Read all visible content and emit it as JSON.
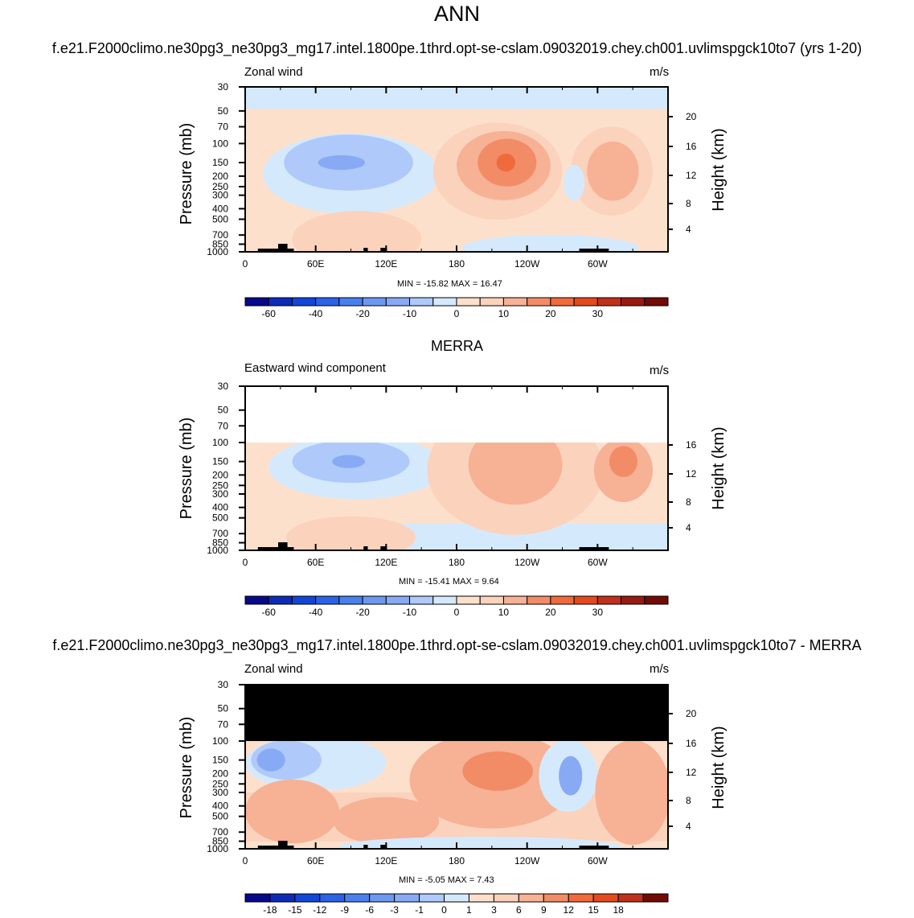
{
  "title": "ANN",
  "chart_data": [
    {
      "type": "heatmap",
      "case_title": "f.e21.F2000climo.ne30pg3_ne30pg3_mg17.intel.1800pe.1thrd.opt-se-cslam.09032019.chey.ch001.uvlimspgck10to7 (yrs 1-20)",
      "panel_label": "Zonal wind",
      "units": "m/s",
      "min_max": "MIN = -15.82  MAX =  16.47",
      "ylabel": "Pressure (mb)",
      "ylabel_right": "Height (km)",
      "x_ticks": [
        "0",
        "60E",
        "120E",
        "180",
        "120W",
        "60W"
      ],
      "y_ticks": [
        "30",
        "50",
        "70",
        "100",
        "150",
        "200",
        "250",
        "300",
        "400",
        "500",
        "700",
        "850",
        "1000"
      ],
      "y_ticks_right": [
        "20",
        "16",
        "12",
        "8",
        "4"
      ],
      "colorbar_labels": [
        "-60",
        "-40",
        "-20",
        "-10",
        "0",
        "10",
        "20",
        "30"
      ],
      "field": [
        {
          "shape": "rect",
          "color": "#d5e9fc",
          "x0": 0,
          "x1": 360,
          "p0": 30,
          "p1": 48,
          "note": "-5..0 band at top"
        },
        {
          "shape": "ellipse",
          "color": "#d5e9fc",
          "lon": 90,
          "lon_r": 75,
          "p": 190,
          "p_r": 0.45
        },
        {
          "shape": "ellipse",
          "color": "#aec9fa",
          "lon": 88,
          "lon_r": 55,
          "p": 150,
          "p_r": 0.3
        },
        {
          "shape": "ellipse",
          "color": "#88aaf4",
          "lon": 82,
          "lon_r": 20,
          "p": 150,
          "p_r": 0.05
        },
        {
          "shape": "ellipse",
          "color": "#fbd2bc",
          "lon": 215,
          "lon_r": 55,
          "p": 180,
          "p_r": 0.55
        },
        {
          "shape": "ellipse",
          "color": "#f7b195",
          "lon": 220,
          "lon_r": 40,
          "p": 160,
          "p_r": 0.38
        },
        {
          "shape": "ellipse",
          "color": "#f28c66",
          "lon": 223,
          "lon_r": 25,
          "p": 150,
          "p_r": 0.25
        },
        {
          "shape": "ellipse",
          "color": "#f06a3c",
          "lon": 222,
          "lon_r": 8,
          "p": 150,
          "p_r": 0.07
        },
        {
          "shape": "ellipse",
          "color": "#fbd2bc",
          "lon": 312,
          "lon_r": 35,
          "p": 180,
          "p_r": 0.5
        },
        {
          "shape": "ellipse",
          "color": "#f7b195",
          "lon": 313,
          "lon_r": 22,
          "p": 180,
          "p_r": 0.32
        },
        {
          "shape": "ellipse",
          "color": "#d5e9fc",
          "lon": 280,
          "lon_r": 9,
          "p": 230,
          "p_r": 0.18
        },
        {
          "shape": "ellipse",
          "color": "#fbd2bc",
          "lon": 95,
          "lon_r": 55,
          "p": 760,
          "p_r": 0.3
        },
        {
          "shape": "ellipse",
          "color": "#d5e9fc",
          "lon": 260,
          "lon_r": 75,
          "p": 920,
          "p_r": 0.12
        }
      ]
    },
    {
      "type": "heatmap",
      "case_title": "MERRA",
      "panel_label": "Eastward wind component",
      "units": "m/s",
      "min_max": "MIN = -15.41  MAX =  9.64",
      "ylabel": "Pressure (mb)",
      "ylabel_right": "Height (km)",
      "x_ticks": [
        "0",
        "60E",
        "120E",
        "180",
        "120W",
        "60W"
      ],
      "y_ticks": [
        "30",
        "50",
        "70",
        "100",
        "150",
        "200",
        "250",
        "300",
        "400",
        "500",
        "700",
        "850",
        "1000"
      ],
      "y_ticks_right": [
        "16",
        "12",
        "8",
        "4"
      ],
      "colorbar_labels": [
        "-60",
        "-40",
        "-20",
        "-10",
        "0",
        "10",
        "20",
        "30"
      ],
      "data_top_p": 100,
      "field": [
        {
          "shape": "rect",
          "color": "#d5e9fc",
          "x0": 130,
          "x1": 360,
          "p0": 560,
          "p1": 1000
        },
        {
          "shape": "ellipse",
          "color": "#d5e9fc",
          "lon": 95,
          "lon_r": 75,
          "p": 170,
          "p_r": 0.35
        },
        {
          "shape": "ellipse",
          "color": "#aec9fa",
          "lon": 90,
          "lon_r": 50,
          "p": 150,
          "p_r": 0.22
        },
        {
          "shape": "ellipse",
          "color": "#88aaf4",
          "lon": 88,
          "lon_r": 14,
          "p": 150,
          "p_r": 0.04
        },
        {
          "shape": "ellipse",
          "color": "#fbd2bc",
          "lon": 230,
          "lon_r": 75,
          "p": 180,
          "p_r": 0.75
        },
        {
          "shape": "ellipse",
          "color": "#f7b195",
          "lon": 230,
          "lon_r": 40,
          "p": 160,
          "p_r": 0.45
        },
        {
          "shape": "ellipse",
          "color": "#f7b195",
          "lon": 322,
          "lon_r": 25,
          "p": 180,
          "p_r": 0.35
        },
        {
          "shape": "ellipse",
          "color": "#f28c66",
          "lon": 322,
          "lon_r": 12,
          "p": 150,
          "p_r": 0.15
        },
        {
          "shape": "ellipse",
          "color": "#fbd2bc",
          "lon": 90,
          "lon_r": 55,
          "p": 760,
          "p_r": 0.22
        }
      ]
    },
    {
      "type": "heatmap",
      "case_title": "f.e21.F2000climo.ne30pg3_ne30pg3_mg17.intel.1800pe.1thrd.opt-se-cslam.09032019.chey.ch001.uvlimspgck10to7 - MERRA",
      "panel_label": "Zonal wind",
      "units": "m/s",
      "min_max": "MIN = -5.05  MAX =  7.43",
      "ylabel": "Pressure (mb)",
      "ylabel_right": "Height (km)",
      "x_ticks": [
        "0",
        "60E",
        "120E",
        "180",
        "120W",
        "60W"
      ],
      "y_ticks": [
        "30",
        "50",
        "70",
        "100",
        "150",
        "200",
        "250",
        "300",
        "400",
        "500",
        "700",
        "850",
        "1000"
      ],
      "y_ticks_right": [
        "20",
        "16",
        "12",
        "8",
        "4"
      ],
      "colorbar_labels": [
        "-18",
        "-15",
        "-12",
        "-9",
        "-6",
        "-3",
        "-1",
        "0",
        "1",
        "3",
        "6",
        "9",
        "12",
        "15",
        "18"
      ],
      "masked_above_p": 100,
      "field": [
        {
          "shape": "rect",
          "color": "#fbd2bc",
          "x0": 0,
          "x1": 360,
          "p0": 300,
          "p1": 850
        },
        {
          "shape": "ellipse",
          "color": "#d5e9fc",
          "lon": 60,
          "lon_r": 60,
          "p": 160,
          "p_r": 0.3
        },
        {
          "shape": "ellipse",
          "color": "#aec9fa",
          "lon": 35,
          "lon_r": 30,
          "p": 150,
          "p_r": 0.2
        },
        {
          "shape": "ellipse",
          "color": "#88aaf4",
          "lon": 22,
          "lon_r": 12,
          "p": 150,
          "p_r": 0.1
        },
        {
          "shape": "ellipse",
          "color": "#f7b195",
          "lon": 210,
          "lon_r": 70,
          "p": 230,
          "p_r": 0.55
        },
        {
          "shape": "ellipse",
          "color": "#f28c66",
          "lon": 215,
          "lon_r": 30,
          "p": 190,
          "p_r": 0.2
        },
        {
          "shape": "ellipse",
          "color": "#d5e9fc",
          "lon": 275,
          "lon_r": 25,
          "p": 210,
          "p_r": 0.4
        },
        {
          "shape": "ellipse",
          "color": "#88aaf4",
          "lon": 277,
          "lon_r": 10,
          "p": 210,
          "p_r": 0.2
        },
        {
          "shape": "ellipse",
          "color": "#f7b195",
          "lon": 330,
          "lon_r": 32,
          "p": 300,
          "p_r": 0.6
        },
        {
          "shape": "ellipse",
          "color": "#f7b195",
          "lon": 40,
          "lon_r": 40,
          "p": 450,
          "p_r": 0.35
        },
        {
          "shape": "ellipse",
          "color": "#f7b195",
          "lon": 120,
          "lon_r": 45,
          "p": 550,
          "p_r": 0.25
        },
        {
          "shape": "ellipse",
          "color": "#d5e9fc",
          "lon": 200,
          "lon_r": 120,
          "p": 950,
          "p_r": 0.08
        }
      ]
    }
  ],
  "colors": {
    "cbar_main": [
      "#08088a",
      "#0c2cb8",
      "#1146d8",
      "#2a62e8",
      "#4a80ee",
      "#6d98f2",
      "#88aaf4",
      "#aec9fa",
      "#d5e9fc",
      "#fde0cc",
      "#fbd2bc",
      "#f7b195",
      "#f28c66",
      "#f06a3c",
      "#e34a1d",
      "#c0301a",
      "#9a1a12",
      "#720a06"
    ],
    "cbar_diff": [
      "#08088a",
      "#0c2cb8",
      "#1146d8",
      "#2a62e8",
      "#4a80ee",
      "#6d98f2",
      "#88aaf4",
      "#aec9fa",
      "#d5e9fc",
      "#fde0cc",
      "#fbd2bc",
      "#f7b195",
      "#f28c66",
      "#f06a3c",
      "#e34a1d",
      "#c0301a",
      "#720a06"
    ],
    "zero_fill": "#fde0cc",
    "mask": "#000000"
  }
}
